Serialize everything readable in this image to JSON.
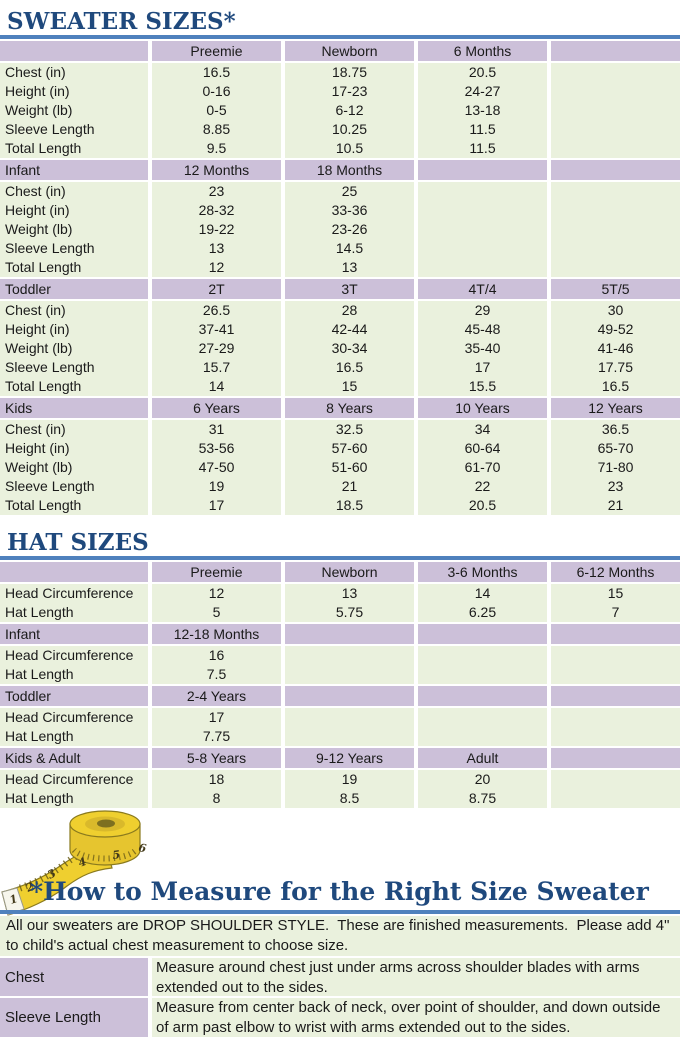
{
  "titles": {
    "sweater": "SWEATER SIZES*",
    "hat": "HAT SIZES",
    "measure": "*How to Measure for the Right Size Sweater"
  },
  "colors": {
    "title_navy": "#1F497D",
    "accent_blue": "#4F81BD",
    "header_purple": "#CCC0D9",
    "row_green": "#EAF1DD",
    "tape_yellow": "#EFCF2F"
  },
  "sweater_table": {
    "rows": [
      {
        "type": "header",
        "cells": [
          "",
          "Preemie",
          "Newborn",
          "6 Months",
          ""
        ]
      },
      {
        "type": "data",
        "cells": [
          "Chest (in)",
          "16.5",
          "18.75",
          "20.5",
          ""
        ]
      },
      {
        "type": "data",
        "cells": [
          "Height (in)",
          "0-16",
          "17-23",
          "24-27",
          ""
        ]
      },
      {
        "type": "data",
        "cells": [
          "Weight (lb)",
          "0-5",
          "6-12",
          "13-18",
          ""
        ]
      },
      {
        "type": "data",
        "cells": [
          "Sleeve Length",
          "8.85",
          "10.25",
          "11.5",
          ""
        ]
      },
      {
        "type": "data",
        "cells": [
          "Total Length",
          "9.5",
          "10.5",
          "11.5",
          ""
        ]
      },
      {
        "type": "header",
        "cells": [
          "Infant",
          "12 Months",
          "18 Months",
          "",
          ""
        ]
      },
      {
        "type": "data",
        "cells": [
          "Chest (in)",
          "23",
          "25",
          "",
          ""
        ]
      },
      {
        "type": "data",
        "cells": [
          "Height (in)",
          "28-32",
          "33-36",
          "",
          ""
        ]
      },
      {
        "type": "data",
        "cells": [
          "Weight (lb)",
          "19-22",
          "23-26",
          "",
          ""
        ]
      },
      {
        "type": "data",
        "cells": [
          "Sleeve Length",
          "13",
          "14.5",
          "",
          ""
        ]
      },
      {
        "type": "data",
        "cells": [
          "Total Length",
          "12",
          "13",
          "",
          ""
        ]
      },
      {
        "type": "header",
        "cells": [
          "Toddler",
          "2T",
          "3T",
          "4T/4",
          "5T/5"
        ]
      },
      {
        "type": "data",
        "cells": [
          "Chest (in)",
          "26.5",
          "28",
          "29",
          "30"
        ]
      },
      {
        "type": "data",
        "cells": [
          "Height (in)",
          "37-41",
          "42-44",
          "45-48",
          "49-52"
        ]
      },
      {
        "type": "data",
        "cells": [
          "Weight (lb)",
          "27-29",
          "30-34",
          "35-40",
          "41-46"
        ]
      },
      {
        "type": "data",
        "cells": [
          "Sleeve Length",
          "15.7",
          "16.5",
          "17",
          "17.75"
        ]
      },
      {
        "type": "data",
        "cells": [
          "Total Length",
          "14",
          "15",
          "15.5",
          "16.5"
        ]
      },
      {
        "type": "header",
        "cells": [
          "Kids",
          "6 Years",
          "8 Years",
          "10 Years",
          "12 Years"
        ]
      },
      {
        "type": "data",
        "cells": [
          "Chest (in)",
          "31",
          "32.5",
          "34",
          "36.5"
        ]
      },
      {
        "type": "data",
        "cells": [
          "Height (in)",
          "53-56",
          "57-60",
          "60-64",
          "65-70"
        ]
      },
      {
        "type": "data",
        "cells": [
          "Weight (lb)",
          "47-50",
          "51-60",
          "61-70",
          "71-80"
        ]
      },
      {
        "type": "data",
        "cells": [
          "Sleeve Length",
          "19",
          "21",
          "22",
          "23"
        ]
      },
      {
        "type": "data",
        "cells": [
          "Total Length",
          "17",
          "18.5",
          "20.5",
          "21"
        ]
      }
    ]
  },
  "hat_table": {
    "rows": [
      {
        "type": "header",
        "cells": [
          "",
          "Preemie",
          "Newborn",
          "3-6 Months",
          "6-12 Months"
        ]
      },
      {
        "type": "data",
        "cells": [
          "Head Circumference",
          "12",
          "13",
          "14",
          "15"
        ]
      },
      {
        "type": "data",
        "cells": [
          "Hat Length",
          "5",
          "5.75",
          "6.25",
          "7"
        ]
      },
      {
        "type": "header",
        "cells": [
          "Infant",
          "12-18 Months",
          "",
          "",
          ""
        ]
      },
      {
        "type": "data",
        "cells": [
          "Head Circumference",
          "16",
          "",
          "",
          ""
        ]
      },
      {
        "type": "data",
        "cells": [
          "Hat Length",
          "7.5",
          "",
          "",
          ""
        ]
      },
      {
        "type": "header",
        "cells": [
          "Toddler",
          "2-4 Years",
          "",
          "",
          ""
        ]
      },
      {
        "type": "data",
        "cells": [
          "Head Circumference",
          "17",
          "",
          "",
          ""
        ]
      },
      {
        "type": "data",
        "cells": [
          "Hat Length",
          "7.75",
          "",
          "",
          ""
        ]
      },
      {
        "type": "header",
        "cells": [
          "Kids & Adult",
          "5-8 Years",
          "9-12 Years",
          "Adult",
          ""
        ]
      },
      {
        "type": "data",
        "cells": [
          "Head Circumference",
          "18",
          "19",
          "20",
          ""
        ]
      },
      {
        "type": "data",
        "cells": [
          "Hat Length",
          "8",
          "8.5",
          "8.75",
          ""
        ]
      }
    ]
  },
  "measure": {
    "intro": "All our sweaters are DROP SHOULDER STYLE.  These are finished measurements.  Please add 4\" to child's actual chest measurement to choose size.",
    "rows": [
      {
        "label": "Chest",
        "text": "Measure around chest just under arms across shoulder blades with arms extended out to the sides."
      },
      {
        "label": "Sleeve Length",
        "text": "Measure from center back of neck, over point of shoulder, and down outside of arm past elbow to wrist with arms extended out to the sides."
      }
    ],
    "tape_numbers": [
      "1",
      "2",
      "3",
      "4",
      "5",
      "6"
    ]
  }
}
